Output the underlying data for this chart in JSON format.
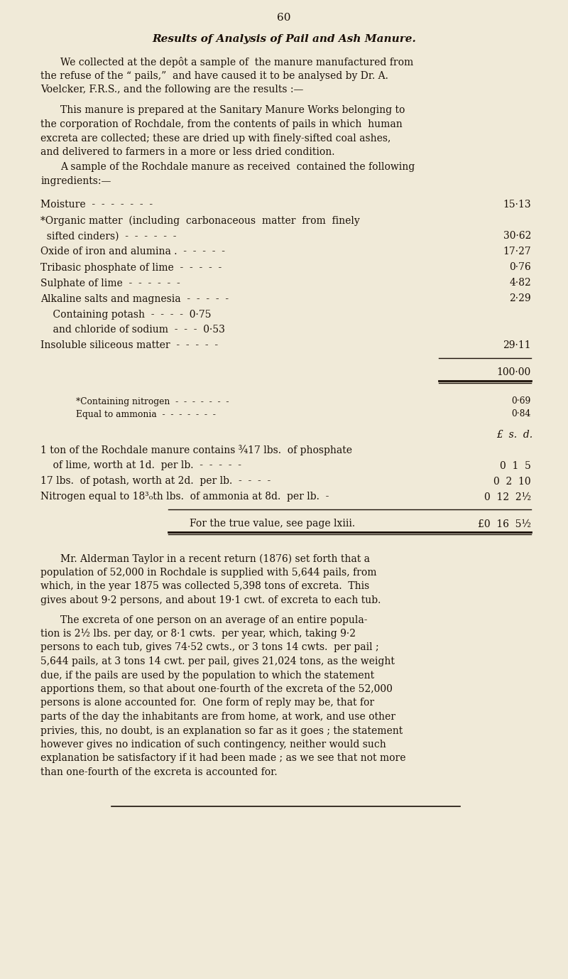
{
  "bg_color": "#f0ead8",
  "text_color": "#1a1008",
  "page_number": "60",
  "title": "Results of Analysis of Pail and Ash Manure.",
  "para1_lines": [
    "We collected at the depôt a sample of  the manure manufactured from",
    "the refuse of the “ pails,”  and have caused it to be analysed by Dr. A.",
    "Voelcker, F.R.S., and the following are the results :—"
  ],
  "para2_lines": [
    "This manure is prepared at the Sanitary Manure Works belonging to",
    "the corporation of Rochdale, from the contents of pails in which  human",
    "excreta are collected; these are dried up with finely-sifted coal ashes,",
    "and delivered to farmers in a more or less dried condition."
  ],
  "para3_lines": [
    "A sample of the Rochdale manure as received  contained the following",
    "ingredients:—"
  ],
  "table_rows": [
    {
      "label": "Moisture  -  -  -  -  -  -  -",
      "indent": false,
      "value": "15·13"
    },
    {
      "label": "*Organic matter  (including  carbonaceous  matter  from  finely",
      "indent": false,
      "value": ""
    },
    {
      "label": "  sifted cinders)  -  -  -  -  -  -",
      "indent": false,
      "value": "30·62"
    },
    {
      "label": "Oxide of iron and alumina .  -  -  -  -  -",
      "indent": false,
      "value": "17·27"
    },
    {
      "label": "Tribasic phosphate of lime  -  -  -  -  -",
      "indent": false,
      "value": "0·76"
    },
    {
      "label": "Sulphate of lime  -  -  -  -  -  -",
      "indent": false,
      "value": "4·82"
    },
    {
      "label": "Alkaline salts and magnesia  -  -  -  -  -",
      "indent": false,
      "value": "2·29"
    },
    {
      "label": "    Containing potash  -  -  -  -  0·75",
      "indent": true,
      "value": ""
    },
    {
      "label": "    and chloride of sodium  -  -  -  0·53",
      "indent": true,
      "value": ""
    },
    {
      "label": "Insoluble siliceous matter  -  -  -  -  -",
      "indent": false,
      "value": "29·11"
    }
  ],
  "total": "100·00",
  "footnote_rows": [
    {
      "label": "*Containing nitrogen  -  -  -  -  -  -  -",
      "value": "0·69"
    },
    {
      "label": "Equal to ammonia  -  -  -  -  -  -  -",
      "value": "0·84"
    }
  ],
  "money_header": "£  s.  d.",
  "money_rows": [
    {
      "label": "1 ton of the Rochdale manure contains ¾17 lbs.  of phosphate",
      "value": "",
      "indent": false
    },
    {
      "label": "    of lime, worth at 1d.  per lb.  -  -  -  -  -",
      "value": "0  1  5",
      "indent": true
    },
    {
      "label": "17 lbs.  of potash, worth at 2d.  per lb.  -  -  -  -",
      "value": "0  2  10",
      "indent": false
    },
    {
      "label": "Nitrogen equal to 18³₀th lbs.  of ammonia at 8d.  per lb.  -",
      "value": "0  12  2½",
      "indent": false
    }
  ],
  "for_true_value": "For the true value, see page lxiii.",
  "for_true_money": "£0  16  5½",
  "alderman_lines": [
    "Mr. Alderman Taylor in a recent return (1876) set forth that a",
    "population of 52,000 in Rochdale is supplied with 5,644 pails, from",
    "which, in the year 1875 was collected 5,398 tons of excreta.  This",
    "gives about 9·2 persons, and about 19·1 cwt. of excreta to each tub."
  ],
  "excreta_lines": [
    "The excreta of one person on an average of an entire popula-",
    "tion is 2½ lbs. per day, or 8·1 cwts.  per year, which, taking 9·2",
    "persons to each tub, gives 74·52 cwts., or 3 tons 14 cwts.  per pail ;",
    "5,644 pails, at 3 tons 14 cwt. per pail, gives 21,024 tons, as the weight",
    "due, if the pails are used by the population to which the statement",
    "apportions them, so that about one-fourth of the excreta of the 52,000",
    "persons is alone accounted for.  One form of reply may be, that for",
    "parts of the day the inhabitants are from home, at work, and use other",
    "privies, this, no doubt, is an explanation so far as it goes ; the statement",
    "however gives no indication of such contingency, neither would such",
    "explanation be satisfactory if it had been made ; as we see that not more",
    "than one-fourth of the excreta is accounted for."
  ]
}
